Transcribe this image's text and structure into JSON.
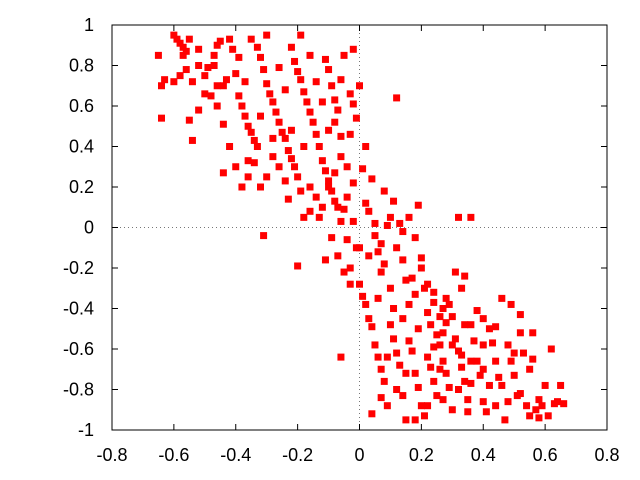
{
  "chart_data": {
    "type": "scatter",
    "title": "",
    "xlabel": "",
    "ylabel": "",
    "xlim": [
      -0.8,
      0.8
    ],
    "ylim": [
      -1,
      1
    ],
    "xticks": [
      "-0.8",
      "-0.6",
      "-0.4",
      "-0.2",
      "0",
      "0.2",
      "0.4",
      "0.6",
      "0.8"
    ],
    "yticks": [
      "1",
      "0.8",
      "0.6",
      "0.4",
      "0.2",
      "0",
      "-0.2",
      "-0.4",
      "-0.6",
      "-0.8",
      "-1"
    ],
    "zero_lines": true,
    "grid": false,
    "legend": "none",
    "series": [
      {
        "color": "#ff0000",
        "marker": "square",
        "points": [
          [
            -0.59,
            0.93
          ],
          [
            -0.58,
            0.91
          ],
          [
            -0.57,
            0.89
          ],
          [
            -0.56,
            0.87
          ],
          [
            -0.55,
            0.93
          ],
          [
            -0.57,
            0.85
          ],
          [
            -0.56,
            0.78
          ],
          [
            -0.58,
            0.75
          ],
          [
            -0.6,
            0.72
          ],
          [
            -0.63,
            0.73
          ],
          [
            -0.65,
            0.85
          ],
          [
            -0.64,
            0.7
          ],
          [
            -0.64,
            0.54
          ],
          [
            -0.55,
            0.53
          ],
          [
            -0.54,
            0.43
          ],
          [
            -0.52,
            0.58
          ],
          [
            -0.5,
            0.66
          ],
          [
            -0.49,
            0.79
          ],
          [
            -0.47,
            0.8
          ],
          [
            -0.46,
            0.7
          ],
          [
            -0.47,
            0.85
          ],
          [
            -0.46,
            0.9
          ],
          [
            -0.45,
            0.92
          ],
          [
            -0.44,
            0.7
          ],
          [
            -0.43,
            0.73
          ],
          [
            -0.41,
            0.88
          ],
          [
            -0.4,
            0.76
          ],
          [
            -0.39,
            0.65
          ],
          [
            -0.38,
            0.6
          ],
          [
            -0.37,
            0.55
          ],
          [
            -0.36,
            0.5
          ],
          [
            -0.35,
            0.47
          ],
          [
            -0.34,
            0.43
          ],
          [
            -0.33,
            0.4
          ],
          [
            -0.35,
            0.93
          ],
          [
            -0.33,
            0.89
          ],
          [
            -0.32,
            0.84
          ],
          [
            -0.31,
            0.78
          ],
          [
            -0.3,
            0.71
          ],
          [
            -0.29,
            0.66
          ],
          [
            -0.28,
            0.62
          ],
          [
            -0.27,
            0.57
          ],
          [
            -0.26,
            0.52
          ],
          [
            -0.25,
            0.47
          ],
          [
            -0.24,
            0.44
          ],
          [
            -0.23,
            0.38
          ],
          [
            -0.22,
            0.34
          ],
          [
            -0.21,
            0.3
          ],
          [
            -0.2,
            0.25
          ],
          [
            -0.22,
            0.89
          ],
          [
            -0.21,
            0.82
          ],
          [
            -0.2,
            0.77
          ],
          [
            -0.19,
            0.73
          ],
          [
            -0.18,
            0.67
          ],
          [
            -0.17,
            0.62
          ],
          [
            -0.16,
            0.57
          ],
          [
            -0.15,
            0.52
          ],
          [
            -0.14,
            0.46
          ],
          [
            -0.13,
            0.4
          ],
          [
            -0.12,
            0.33
          ],
          [
            -0.11,
            0.28
          ],
          [
            -0.1,
            0.23
          ],
          [
            -0.09,
            0.18
          ],
          [
            -0.08,
            0.13
          ],
          [
            -0.07,
            0.1
          ],
          [
            -0.06,
            0.03
          ],
          [
            -0.11,
            0.83
          ],
          [
            -0.1,
            0.78
          ],
          [
            -0.09,
            0.7
          ],
          [
            -0.08,
            0.63
          ],
          [
            -0.07,
            0.58
          ],
          [
            -0.06,
            0.73
          ],
          [
            -0.05,
            0.85
          ],
          [
            -0.03,
            0.66
          ],
          [
            -0.02,
            0.61
          ],
          [
            -0.01,
            0.54
          ],
          [
            -0.02,
            0.88
          ],
          [
            -0.31,
            -0.04
          ],
          [
            -0.2,
            -0.19
          ],
          [
            -0.11,
            -0.16
          ],
          [
            -0.06,
            -0.64
          ],
          [
            -0.05,
            0.09
          ],
          [
            -0.04,
            0.15
          ],
          [
            -0.04,
            -0.06
          ],
          [
            -0.03,
            -0.2
          ],
          [
            -0.02,
            0.03
          ],
          [
            -0.01,
            -0.1
          ],
          [
            0.0,
            -0.28
          ],
          [
            0.01,
            -0.34
          ],
          [
            0.0,
            -0.1
          ],
          [
            0.01,
            0.29
          ],
          [
            0.02,
            0.4
          ],
          [
            0.03,
            0.08
          ],
          [
            0.04,
            0.24
          ],
          [
            0.05,
            0.02
          ],
          [
            0.06,
            -0.12
          ],
          [
            0.07,
            -0.08
          ],
          [
            0.08,
            0.18
          ],
          [
            0.09,
            0.01
          ],
          [
            0.1,
            0.05
          ],
          [
            0.11,
            0.13
          ],
          [
            0.12,
            0.64
          ],
          [
            0.13,
            0.02
          ],
          [
            0.14,
            -0.16
          ],
          [
            0.15,
            -0.26
          ],
          [
            0.16,
            -0.38
          ],
          [
            0.17,
            -0.25
          ],
          [
            0.18,
            -0.05
          ],
          [
            0.19,
            0.11
          ],
          [
            0.2,
            -0.2
          ],
          [
            0.21,
            -0.3
          ],
          [
            0.22,
            -0.42
          ],
          [
            0.23,
            -0.48
          ],
          [
            0.24,
            -0.37
          ],
          [
            0.25,
            -0.53
          ],
          [
            0.26,
            -0.44
          ],
          [
            0.27,
            -0.4
          ],
          [
            0.28,
            -0.47
          ],
          [
            0.29,
            -0.38
          ],
          [
            0.3,
            -0.44
          ],
          [
            0.31,
            -0.22
          ],
          [
            0.32,
            0.05
          ],
          [
            0.33,
            -0.3
          ],
          [
            0.36,
            0.05
          ],
          [
            0.02,
            -0.38
          ],
          [
            0.03,
            -0.45
          ],
          [
            0.04,
            -0.49
          ],
          [
            0.05,
            -0.58
          ],
          [
            0.06,
            -0.64
          ],
          [
            0.07,
            -0.7
          ],
          [
            0.08,
            -0.76
          ],
          [
            0.09,
            -0.88
          ],
          [
            0.1,
            -0.48
          ],
          [
            0.11,
            -0.55
          ],
          [
            0.12,
            -0.62
          ],
          [
            0.13,
            -0.68
          ],
          [
            0.14,
            -0.83
          ],
          [
            0.15,
            -0.95
          ],
          [
            0.16,
            -0.56
          ],
          [
            0.17,
            -0.61
          ],
          [
            0.18,
            -0.72
          ],
          [
            0.19,
            -0.79
          ],
          [
            0.2,
            -0.88
          ],
          [
            0.21,
            -0.93
          ],
          [
            0.22,
            -0.64
          ],
          [
            0.23,
            -0.69
          ],
          [
            0.24,
            -0.76
          ],
          [
            0.25,
            -0.83
          ],
          [
            0.26,
            -0.58
          ],
          [
            0.27,
            -0.66
          ],
          [
            0.28,
            -0.72
          ],
          [
            0.29,
            -0.79
          ],
          [
            0.3,
            -0.9
          ],
          [
            0.31,
            -0.55
          ],
          [
            0.32,
            -0.61
          ],
          [
            0.33,
            -0.69
          ],
          [
            0.34,
            -0.76
          ],
          [
            0.35,
            -0.85
          ],
          [
            0.36,
            -0.48
          ],
          [
            0.37,
            -0.56
          ],
          [
            0.38,
            -0.66
          ],
          [
            0.39,
            -0.73
          ],
          [
            0.4,
            -0.86
          ],
          [
            0.41,
            -0.91
          ],
          [
            0.42,
            -0.5
          ],
          [
            0.43,
            -0.57
          ],
          [
            0.44,
            -0.66
          ],
          [
            0.45,
            -0.74
          ],
          [
            0.46,
            -0.78
          ],
          [
            0.47,
            -0.95
          ],
          [
            0.48,
            -0.58
          ],
          [
            0.49,
            -0.66
          ],
          [
            0.5,
            -0.73
          ],
          [
            0.51,
            -0.83
          ],
          [
            0.52,
            -0.43
          ],
          [
            0.53,
            -0.62
          ],
          [
            0.54,
            -0.88
          ],
          [
            0.55,
            -0.93
          ],
          [
            0.56,
            -0.65
          ],
          [
            0.57,
            -0.9
          ],
          [
            0.58,
            -0.94
          ],
          [
            0.59,
            -0.88
          ],
          [
            0.6,
            -0.78
          ],
          [
            0.62,
            -0.6
          ],
          [
            0.64,
            -0.86
          ],
          [
            0.65,
            -0.78
          ],
          [
            0.66,
            -0.87
          ],
          [
            0.56,
            -0.52
          ],
          [
            0.52,
            -0.52
          ],
          [
            0.49,
            -0.38
          ],
          [
            0.46,
            -0.35
          ],
          [
            0.44,
            -0.49
          ],
          [
            0.4,
            -0.45
          ],
          [
            0.38,
            -0.41
          ],
          [
            0.34,
            -0.24
          ],
          [
            0.22,
            -0.28
          ],
          [
            0.18,
            -0.33
          ],
          [
            0.1,
            -0.3
          ],
          [
            0.07,
            -0.22
          ],
          [
            0.02,
            0.12
          ],
          [
            -0.02,
            0.22
          ],
          [
            -0.04,
            0.3
          ],
          [
            -0.06,
            0.35
          ],
          [
            -0.08,
            0.27
          ],
          [
            -0.1,
            0.2
          ],
          [
            -0.12,
            0.1
          ],
          [
            -0.14,
            0.15
          ],
          [
            -0.16,
            0.2
          ],
          [
            -0.18,
            0.05
          ],
          [
            -0.19,
            0.18
          ],
          [
            -0.24,
            0.23
          ],
          [
            -0.26,
            0.3
          ],
          [
            -0.28,
            0.35
          ],
          [
            -0.3,
            0.25
          ],
          [
            -0.32,
            0.2
          ],
          [
            -0.34,
            0.32
          ],
          [
            -0.36,
            0.25
          ],
          [
            -0.38,
            0.2
          ],
          [
            -0.4,
            0.3
          ],
          [
            -0.42,
            0.4
          ],
          [
            -0.44,
            0.51
          ],
          [
            -0.46,
            0.6
          ],
          [
            -0.48,
            0.65
          ],
          [
            -0.5,
            0.75
          ],
          [
            -0.52,
            0.8
          ],
          [
            -0.54,
            0.72
          ],
          [
            -0.6,
            0.95
          ],
          [
            -0.52,
            0.88
          ],
          [
            -0.42,
            0.93
          ],
          [
            -0.39,
            0.84
          ],
          [
            -0.37,
            0.72
          ],
          [
            -0.3,
            0.95
          ],
          [
            -0.26,
            0.79
          ],
          [
            -0.24,
            0.68
          ],
          [
            -0.19,
            0.95
          ],
          [
            -0.16,
            0.85
          ],
          [
            -0.14,
            0.72
          ],
          [
            -0.12,
            0.62
          ],
          [
            -0.1,
            0.48
          ],
          [
            -0.08,
            0.52
          ],
          [
            -0.06,
            0.45
          ],
          [
            -0.03,
            0.46
          ],
          [
            0.0,
            0.7
          ],
          [
            -0.18,
            0.4
          ],
          [
            -0.22,
            0.48
          ],
          [
            -0.28,
            0.44
          ],
          [
            -0.32,
            0.55
          ],
          [
            -0.44,
            0.27
          ],
          [
            -0.36,
            0.33
          ],
          [
            -0.23,
            0.14
          ],
          [
            -0.16,
            0.08
          ],
          [
            -0.13,
            0.05
          ],
          [
            -0.09,
            -0.05
          ],
          [
            -0.07,
            -0.14
          ],
          [
            -0.05,
            -0.22
          ],
          [
            -0.03,
            -0.28
          ],
          [
            0.03,
            -0.14
          ],
          [
            0.05,
            -0.04
          ],
          [
            0.08,
            -0.18
          ],
          [
            0.12,
            -0.1
          ],
          [
            0.14,
            -0.02
          ],
          [
            0.16,
            0.05
          ],
          [
            0.2,
            -0.15
          ],
          [
            0.24,
            -0.32
          ],
          [
            0.28,
            -0.35
          ],
          [
            0.3,
            -0.58
          ],
          [
            0.34,
            -0.48
          ],
          [
            0.36,
            -0.66
          ],
          [
            0.4,
            -0.58
          ],
          [
            0.42,
            -0.78
          ],
          [
            0.44,
            -0.88
          ],
          [
            0.48,
            -0.86
          ],
          [
            0.5,
            -0.62
          ],
          [
            0.52,
            -0.82
          ],
          [
            0.55,
            -0.7
          ],
          [
            0.58,
            -0.85
          ],
          [
            0.61,
            -0.93
          ],
          [
            0.63,
            -0.87
          ],
          [
            0.4,
            -0.7
          ],
          [
            0.33,
            -0.63
          ],
          [
            0.27,
            -0.52
          ],
          [
            0.24,
            -0.59
          ],
          [
            0.19,
            -0.5
          ],
          [
            0.14,
            -0.45
          ],
          [
            0.11,
            -0.4
          ],
          [
            0.06,
            -0.35
          ],
          [
            0.12,
            -0.8
          ],
          [
            0.18,
            -0.95
          ],
          [
            0.22,
            -0.88
          ],
          [
            0.27,
            -0.85
          ],
          [
            0.32,
            -0.8
          ],
          [
            0.35,
            -0.91
          ],
          [
            0.04,
            -0.92
          ],
          [
            0.07,
            -0.84
          ],
          [
            0.09,
            -0.64
          ],
          [
            0.15,
            -0.72
          ],
          [
            0.26,
            -0.7
          ],
          [
            0.36,
            -0.77
          ]
        ]
      }
    ]
  }
}
